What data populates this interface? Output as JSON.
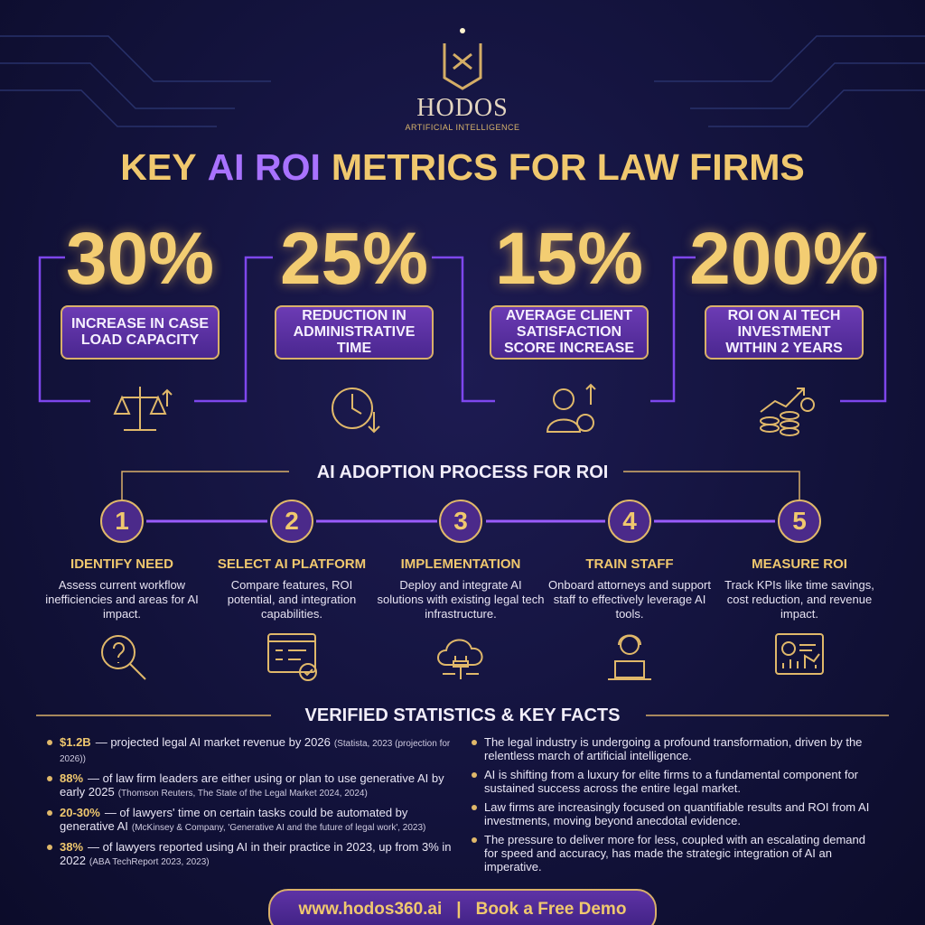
{
  "logo": {
    "brand": "HODOS",
    "tagline": "ARTIFICIAL INTELLIGENCE"
  },
  "title": {
    "prefix": "KEY",
    "highlight": "AI ROI",
    "suffix": "METRICS FOR LAW FIRMS"
  },
  "metrics": [
    {
      "value": "30%",
      "label": "INCREASE IN CASE LOAD CAPACITY"
    },
    {
      "value": "25%",
      "label": "REDUCTION IN ADMINISTRATIVE TIME"
    },
    {
      "value": "15%",
      "label": "AVERAGE CLIENT SATISFACTION SCORE INCREASE"
    },
    {
      "value": "200%",
      "label": "ROI ON AI TECH INVESTMENT WITHIN 2 YEARS"
    }
  ],
  "process": {
    "title": "AI ADOPTION PROCESS FOR ROI",
    "steps": [
      {
        "number": "1",
        "title": "IDENTIFY NEED",
        "description": "Assess current workflow inefficiencies and areas for AI impact."
      },
      {
        "number": "2",
        "title": "SELECT AI PLATFORM",
        "description": "Compare features, ROI potential, and integration capabilities."
      },
      {
        "number": "3",
        "title": "IMPLEMENTATION",
        "description": "Deploy and integrate AI solutions with existing legal tech infrastructure."
      },
      {
        "number": "4",
        "title": "TRAIN STAFF",
        "description": "Onboard attorneys and support staff to effectively leverage AI tools."
      },
      {
        "number": "5",
        "title": "MEASURE ROI",
        "description": "Track KPIs like time savings, cost reduction, and revenue impact."
      }
    ]
  },
  "statistics": {
    "title": "VERIFIED STATISTICS & KEY FACTS",
    "facts": [
      {
        "highlight": "$1.2B",
        "text": "— projected legal AI market revenue by 2026",
        "source": "(Statista, 2023 (projection for 2026))"
      },
      {
        "highlight": "88%",
        "text": "— of law firm leaders are either using or plan to use generative AI by early 2025",
        "source": "(Thomson Reuters, The State of the Legal Market 2024, 2024)"
      },
      {
        "highlight": "20-30%",
        "text": "— of lawyers' time on certain tasks could be automated by generative AI",
        "source": "(McKinsey & Company, 'Generative AI and the future of legal work', 2023)"
      },
      {
        "highlight": "38%",
        "text": "— of lawyers reported using AI in their practice in 2023, up from 3% in 2022",
        "source": "(ABA TechReport 2023, 2023)"
      }
    ],
    "insights": [
      "The legal industry is undergoing a profound transformation, driven by the relentless march of artificial intelligence.",
      "AI is shifting from a luxury for elite firms to a fundamental component for sustained success across the entire legal market.",
      "Law firms are increasingly focused on quantifiable results and ROI from AI investments, moving beyond anecdotal evidence.",
      "The pressure to deliver more for less, coupled with an escalating demand for speed and accuracy, has made the strategic integration of AI an imperative."
    ]
  },
  "footer": {
    "url": "www.hodos360.ai",
    "separator": "|",
    "cta": "Book a Free Demo"
  }
}
